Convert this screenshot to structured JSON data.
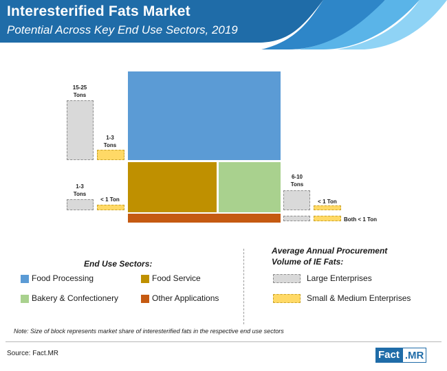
{
  "header": {
    "title": "Interesterified Fats Market",
    "subtitle": "Potential Across Key End Use Sectors, 2019"
  },
  "chart_data": {
    "type": "treemap",
    "title": "Interesterified Fats Market",
    "subtitle": "Potential Across Key End Use Sectors, 2019",
    "sectors": [
      {
        "name": "Food Processing",
        "color": "#5b9bd5"
      },
      {
        "name": "Food Service",
        "color": "#bf9000"
      },
      {
        "name": "Bakery & Confectionery",
        "color": "#a9d18e"
      },
      {
        "name": "Other Applications",
        "color": "#c55a11"
      }
    ],
    "procurement": [
      {
        "sector": "Food Processing",
        "large": "15-25\nTons",
        "small": "1-3\nTons"
      },
      {
        "sector": "Food Service",
        "large": "1-3\nTons",
        "small": "< 1 Ton"
      },
      {
        "sector": "Bakery & Confectionery",
        "large": "6-10\nTons",
        "small": "< 1 Ton"
      },
      {
        "sector": "Other Applications",
        "both": "Both < 1 Ton"
      }
    ]
  },
  "legend": {
    "sectors_title": "End Use Sectors:",
    "procurement_title": "Average Annual Procurement\nVolume of IE Fats:",
    "large_label": "Large Enterprises",
    "small_label": "Small & Medium Enterprises",
    "large_color": "#d9d9d9",
    "small_color": "#ffd966"
  },
  "note": "Note: Size of block represents market share of interesterified fats in the respective end use sectors",
  "source": "Source: Fact.MR",
  "logo": {
    "part1": "Fact",
    "part2": ".MR"
  }
}
